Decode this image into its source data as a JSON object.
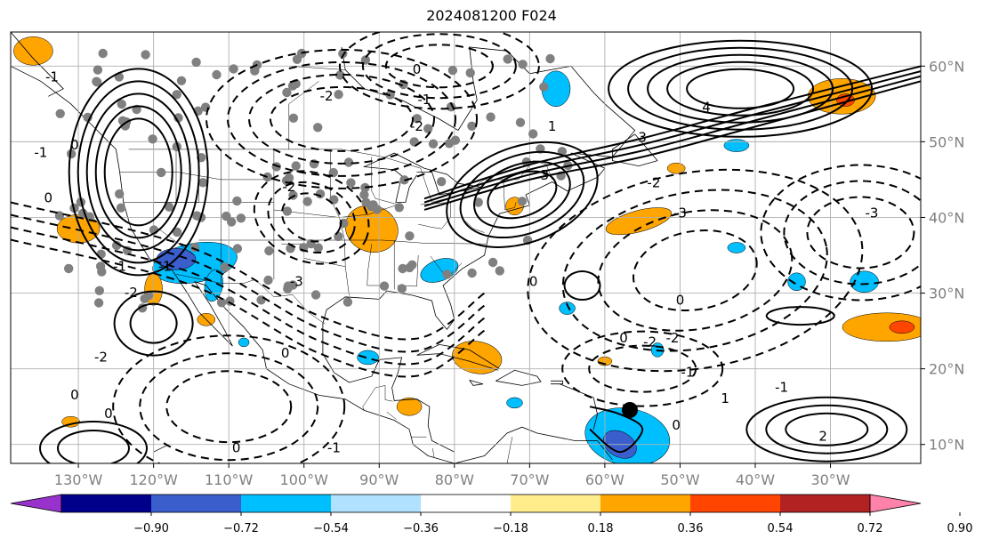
{
  "title": "2024081200 F024",
  "map": {
    "projection": "equirectangular",
    "lon_range": [
      -139,
      -18
    ],
    "lat_range": [
      7.5,
      64.5
    ],
    "lon_ticks": [
      {
        "value": -130,
        "label": "130°W"
      },
      {
        "value": -120,
        "label": "120°W"
      },
      {
        "value": -110,
        "label": "110°W"
      },
      {
        "value": -100,
        "label": "100°W"
      },
      {
        "value": -90,
        "label": "90°W"
      },
      {
        "value": -80,
        "label": "80°W"
      },
      {
        "value": -70,
        "label": "70°W"
      },
      {
        "value": -60,
        "label": "60°W"
      },
      {
        "value": -50,
        "label": "50°W"
      },
      {
        "value": -40,
        "label": "40°W"
      },
      {
        "value": -30,
        "label": "30°W"
      }
    ],
    "lat_ticks": [
      {
        "value": 60,
        "label": "60°N"
      },
      {
        "value": 50,
        "label": "50°N"
      },
      {
        "value": 40,
        "label": "40°N"
      },
      {
        "value": 30,
        "label": "30°N"
      },
      {
        "value": 20,
        "label": "20°N"
      },
      {
        "value": 10,
        "label": "10°N"
      }
    ],
    "gridlines": true,
    "tick_label_color": "#808080",
    "contour_labels": [
      {
        "text": "-1",
        "lon": -133.5,
        "lat": 58.5
      },
      {
        "text": "0",
        "lon": -130.5,
        "lat": 49.5
      },
      {
        "text": "-1",
        "lon": -135,
        "lat": 48.5
      },
      {
        "text": "0",
        "lon": -134,
        "lat": 42.5
      },
      {
        "text": "-1",
        "lon": -124.5,
        "lat": 33.5
      },
      {
        "text": "-2",
        "lon": -123,
        "lat": 30
      },
      {
        "text": "-2",
        "lon": -127,
        "lat": 21.5
      },
      {
        "text": "0",
        "lon": -130.5,
        "lat": 16.5
      },
      {
        "text": "0",
        "lon": -126,
        "lat": 14
      },
      {
        "text": "0",
        "lon": -109,
        "lat": 9.5
      },
      {
        "text": "-1",
        "lon": -96,
        "lat": 9.5
      },
      {
        "text": "-2",
        "lon": -102,
        "lat": 44
      },
      {
        "text": "-3",
        "lon": -101,
        "lat": 31.5
      },
      {
        "text": "-2",
        "lon": -97,
        "lat": 56
      },
      {
        "text": "-1",
        "lon": -84,
        "lat": 55.5
      },
      {
        "text": "-2",
        "lon": -85,
        "lat": 52
      },
      {
        "text": "1",
        "lon": -67,
        "lat": 52
      },
      {
        "text": "3",
        "lon": -68,
        "lat": 45.5
      },
      {
        "text": "3",
        "lon": -55,
        "lat": 50.5
      },
      {
        "text": "4",
        "lon": -46.5,
        "lat": 54.5
      },
      {
        "text": "-2",
        "lon": -53.5,
        "lat": 44.5
      },
      {
        "text": "-3",
        "lon": -50,
        "lat": 40.5
      },
      {
        "text": "-3",
        "lon": -24.5,
        "lat": 40.5
      },
      {
        "text": "0",
        "lon": -57.5,
        "lat": 24
      },
      {
        "text": "-2",
        "lon": -54,
        "lat": 23.5
      },
      {
        "text": "-2",
        "lon": -51,
        "lat": 24
      },
      {
        "text": "-1",
        "lon": -49,
        "lat": 19.5
      },
      {
        "text": "0",
        "lon": -69.5,
        "lat": 31.5
      },
      {
        "text": "0",
        "lon": -50,
        "lat": 29
      },
      {
        "text": "0",
        "lon": -102.5,
        "lat": 22
      },
      {
        "text": "0",
        "lon": -50.5,
        "lat": 12.5
      },
      {
        "text": "1",
        "lon": -44,
        "lat": 16
      },
      {
        "text": "-1",
        "lon": -36.5,
        "lat": 17.5
      },
      {
        "text": "2",
        "lon": -31,
        "lat": 11
      },
      {
        "text": "0",
        "lon": -85,
        "lat": 59.5
      },
      {
        "text": "-1",
        "lon": -118.5,
        "lat": 33.5
      }
    ]
  },
  "colorbar": {
    "colors": [
      "#9932cc",
      "#00008b",
      "#3a5fcd",
      "#00bfff",
      "#b0e2ff",
      "#ffffff",
      "#ffec8b",
      "#ffa500",
      "#ff4500",
      "#b22222",
      "#ff82ab"
    ],
    "labels": [
      "−0.90",
      "−0.72",
      "−0.54",
      "−0.36",
      "−0.18",
      "0.18",
      "0.36",
      "0.54",
      "0.72",
      "0.90"
    ],
    "extend": "both"
  },
  "colors": {
    "positive_fill": "#ffa500",
    "strong_positive_fill": "#ff4500",
    "negative_fill": "#00bfff",
    "strong_negative_fill": "#3a5fcd",
    "contour": "#000000",
    "station_marker": "#808080"
  }
}
